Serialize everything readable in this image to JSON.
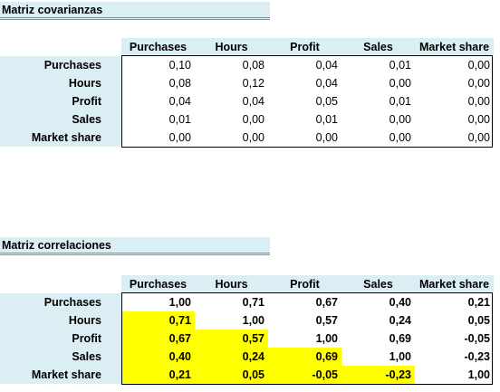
{
  "cov": {
    "title": "Matriz covarianzas",
    "columns": [
      "Purchases",
      "Hours",
      "Profit",
      "Sales",
      "Market share"
    ],
    "rows": [
      {
        "label": "Purchases",
        "values": [
          "0,10",
          "0,08",
          "0,04",
          "0,01",
          "0,00"
        ]
      },
      {
        "label": "Hours",
        "values": [
          "0,08",
          "0,12",
          "0,04",
          "0,00",
          "0,00"
        ]
      },
      {
        "label": "Profit",
        "values": [
          "0,04",
          "0,04",
          "0,05",
          "0,01",
          "0,00"
        ]
      },
      {
        "label": "Sales",
        "values": [
          "0,01",
          "0,00",
          "0,01",
          "0,00",
          "0,00"
        ]
      },
      {
        "label": "Market share",
        "values": [
          "0,00",
          "0,00",
          "0,00",
          "0,00",
          "0,00"
        ]
      }
    ]
  },
  "corr": {
    "title": "Matriz correlaciones",
    "columns": [
      "Purchases",
      "Hours",
      "Profit",
      "Sales",
      "Market share"
    ],
    "rows": [
      {
        "label": "Purchases",
        "values": [
          "1,00",
          "0,71",
          "0,67",
          "0,40",
          "0,21"
        ]
      },
      {
        "label": "Hours",
        "values": [
          "0,71",
          "1,00",
          "0,57",
          "0,24",
          "0,05"
        ]
      },
      {
        "label": "Profit",
        "values": [
          "0,67",
          "0,57",
          "1,00",
          "0,69",
          "-0,05"
        ]
      },
      {
        "label": "Sales",
        "values": [
          "0,40",
          "0,24",
          "0,69",
          "1,00",
          "-0,23"
        ]
      },
      {
        "label": "Market share",
        "values": [
          "0,21",
          "0,05",
          "-0,05",
          "-0,23",
          "1,00"
        ]
      }
    ],
    "highlight_color": "#ffff00"
  },
  "colors": {
    "header_fill": "#daeef3",
    "title_underline": "#6f98b4"
  }
}
